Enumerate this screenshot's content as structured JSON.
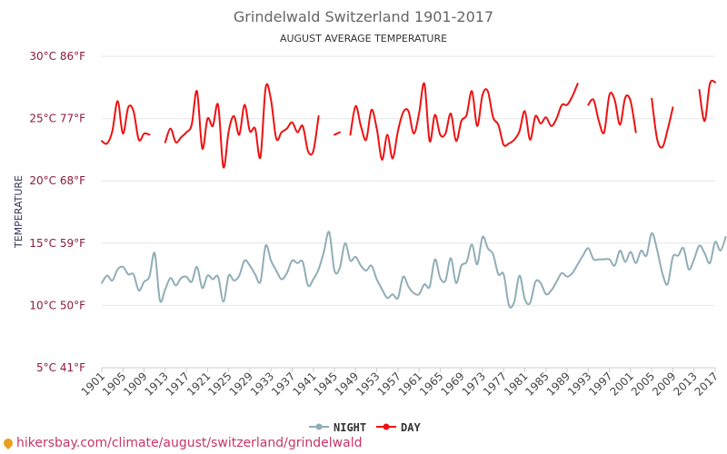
{
  "chart_data": {
    "type": "line",
    "title": "Grindelwald Switzerland 1901-2017",
    "subtitle": "AUGUST AVERAGE TEMPERATURE",
    "ylabel": "TEMPERATURE",
    "xlabel": "",
    "ylim": [
      5,
      30
    ],
    "y_ticks": [
      {
        "value": 5,
        "label": "5°C 41°F"
      },
      {
        "value": 10,
        "label": "10°C 50°F"
      },
      {
        "value": 15,
        "label": "15°C 59°F"
      },
      {
        "value": 20,
        "label": "20°C 68°F"
      },
      {
        "value": 25,
        "label": "25°C 77°F"
      },
      {
        "value": 30,
        "label": "30°C 86°F"
      }
    ],
    "x_ticks": [
      1901,
      1905,
      1909,
      1913,
      1917,
      1921,
      1925,
      1929,
      1933,
      1937,
      1941,
      1945,
      1949,
      1953,
      1957,
      1961,
      1965,
      1969,
      1973,
      1977,
      1981,
      1985,
      1989,
      1993,
      1997,
      2001,
      2005,
      2009,
      2013,
      2017
    ],
    "x_start": 1901,
    "x_end": 2017,
    "grid": true,
    "legend_position": "bottom",
    "series": [
      {
        "name": "NIGHT",
        "color": "#90adb8",
        "values": [
          11.8,
          12.4,
          12.0,
          12.9,
          13.1,
          12.5,
          12.5,
          11.2,
          11.9,
          12.3,
          14.2,
          10.4,
          11.3,
          12.2,
          11.6,
          12.2,
          12.3,
          11.9,
          13.1,
          11.4,
          12.4,
          12.1,
          12.3,
          10.3,
          12.4,
          12.0,
          12.4,
          13.6,
          13.2,
          12.5,
          11.9,
          14.8,
          13.6,
          12.8,
          12.1,
          12.6,
          13.6,
          13.4,
          13.5,
          11.6,
          12.1,
          12.9,
          14.3,
          15.9,
          12.8,
          13.0,
          15.0,
          13.6,
          13.9,
          13.2,
          12.8,
          13.2,
          12.1,
          11.3,
          10.6,
          10.9,
          10.6,
          12.3,
          11.5,
          11.0,
          10.9,
          11.7,
          11.5,
          13.7,
          12.2,
          12.0,
          13.8,
          11.8,
          13.2,
          13.5,
          14.9,
          13.3,
          15.5,
          14.6,
          14.1,
          12.5,
          12.5,
          10.0,
          10.3,
          12.4,
          10.5,
          10.2,
          11.9,
          11.8,
          10.9,
          11.2,
          11.9,
          12.6,
          12.3,
          12.6,
          13.3,
          14.0,
          14.6,
          13.7,
          13.7,
          13.7,
          13.7,
          13.2,
          14.4,
          13.5,
          14.3,
          13.4,
          14.4,
          14.0,
          15.8,
          14.5,
          12.6,
          11.7,
          13.9,
          14.0,
          14.6,
          12.9,
          13.7,
          14.8,
          14.2,
          13.4,
          15.1,
          14.4,
          15.5
        ]
      },
      {
        "name": "DAY",
        "color": "#ee1111",
        "values": [
          23.2,
          23.0,
          24.0,
          26.4,
          23.8,
          25.9,
          25.6,
          23.3,
          23.8,
          23.7,
          null,
          null,
          23.1,
          24.2,
          23.1,
          23.5,
          23.9,
          24.5,
          27.2,
          22.6,
          25.0,
          24.4,
          26.1,
          21.1,
          24.0,
          25.2,
          23.7,
          26.1,
          24.0,
          24.2,
          21.9,
          27.5,
          26.5,
          23.4,
          23.9,
          24.2,
          24.7,
          23.9,
          24.4,
          22.4,
          22.4,
          25.2,
          null,
          null,
          23.7,
          23.9,
          null,
          23.7,
          26.0,
          24.4,
          23.3,
          25.7,
          24.2,
          21.7,
          23.7,
          21.8,
          24.0,
          25.5,
          25.6,
          23.8,
          25.4,
          27.8,
          23.2,
          25.3,
          23.7,
          23.8,
          25.4,
          23.2,
          24.8,
          25.3,
          27.2,
          24.4,
          26.9,
          27.2,
          25.1,
          24.5,
          22.9,
          23.0,
          23.3,
          24.0,
          25.6,
          23.3,
          25.2,
          24.6,
          25.1,
          24.4,
          25.0,
          26.1,
          26.1,
          26.8,
          27.8,
          null,
          26.1,
          26.5,
          24.8,
          23.9,
          26.9,
          26.5,
          24.5,
          26.7,
          26.4,
          23.9,
          null,
          null,
          26.6,
          23.4,
          22.7,
          24.1,
          25.9,
          null,
          null,
          null,
          null,
          27.3,
          24.8,
          27.8,
          27.9
        ]
      }
    ]
  },
  "footer": {
    "text": "hikersbay.com/climate/august/switzerland/grindelwald"
  }
}
